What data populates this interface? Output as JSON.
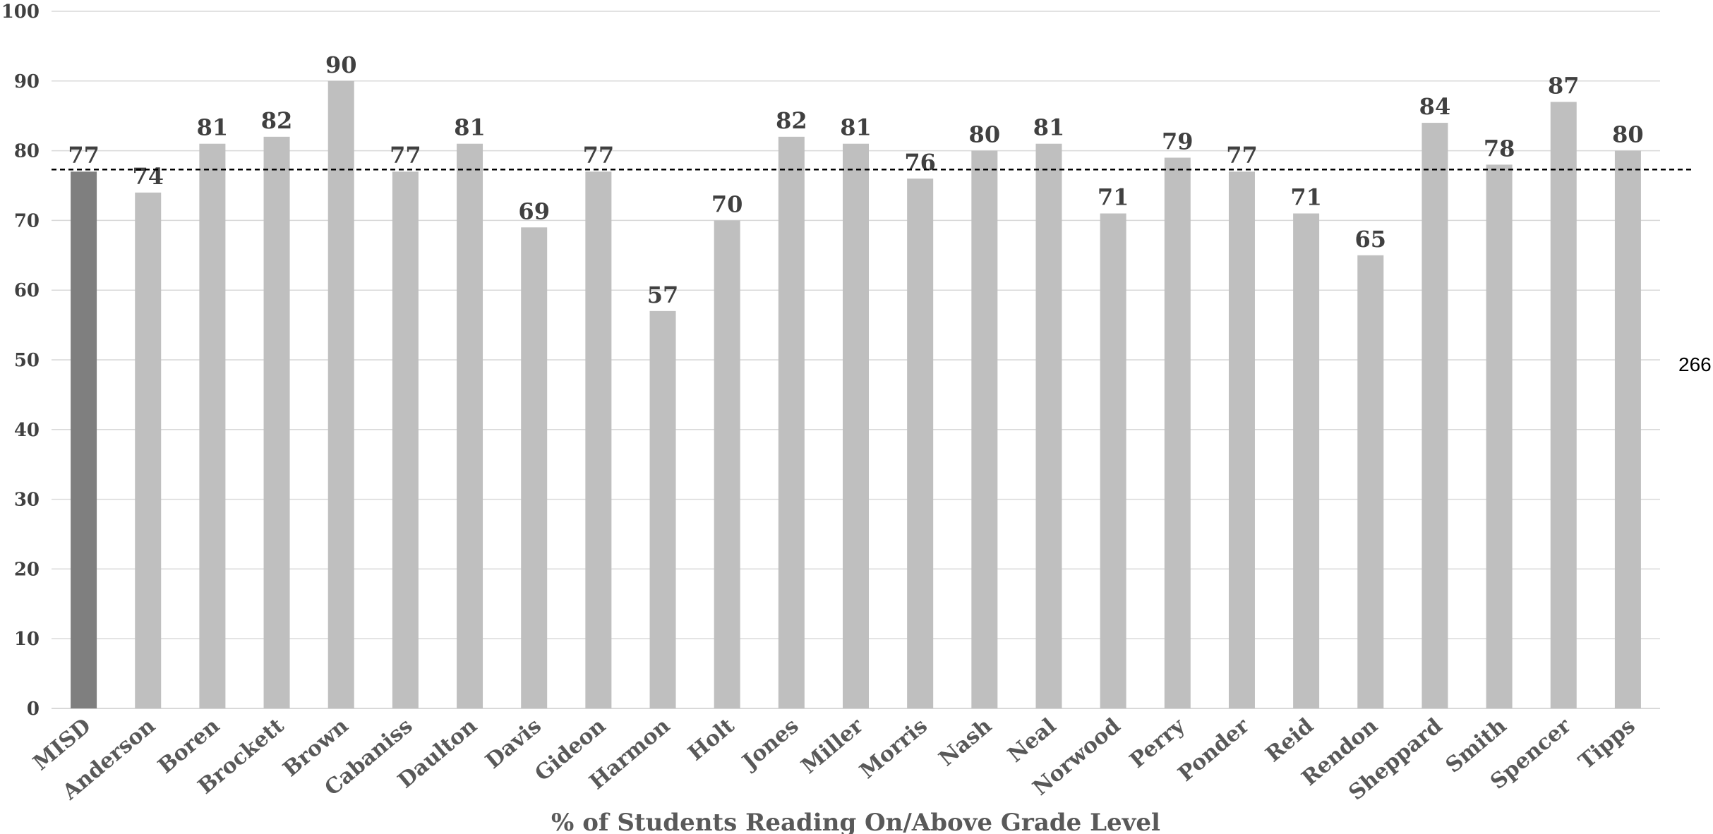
{
  "chart_data": {
    "type": "bar",
    "xlabel": "% of Students Reading On/Above Grade Level",
    "ylabel": "",
    "ylim": [
      0,
      100
    ],
    "y_ticks": [
      0,
      10,
      20,
      30,
      40,
      50,
      60,
      70,
      80,
      90,
      100
    ],
    "grid": true,
    "legend": "none",
    "categories": [
      "MISD",
      "Anderson",
      "Boren",
      "Brockett",
      "Brown",
      "Cabaniss",
      "Daulton",
      "Davis",
      "Gideon",
      "Harmon",
      "Holt",
      "Jones",
      "Miller",
      "Morris",
      "Nash",
      "Neal",
      "Norwood",
      "Perry",
      "Ponder",
      "Reid",
      "Rendon",
      "Sheppard",
      "Smith",
      "Spencer",
      "Tipps"
    ],
    "values": [
      77,
      74,
      81,
      82,
      90,
      77,
      81,
      69,
      77,
      57,
      70,
      82,
      81,
      76,
      80,
      81,
      71,
      79,
      77,
      71,
      65,
      84,
      78,
      87,
      80
    ],
    "data_labels": [
      "77",
      "74",
      "81",
      "82",
      "90",
      "77",
      "81",
      "69",
      "77",
      "57",
      "70",
      "82",
      "81",
      "76",
      "80",
      "81",
      "71",
      "79",
      "77",
      "71",
      "65",
      "84",
      "78",
      "87",
      "80"
    ],
    "reference_line": {
      "value": 77.3,
      "style": "dashed",
      "color": "#000000"
    },
    "side_note": "266",
    "colors": {
      "highlight_bar": "#7f7f7f",
      "bar": "#bfbfbf",
      "grid": "#d9d9d9",
      "axis": "#d9d9d9"
    }
  }
}
